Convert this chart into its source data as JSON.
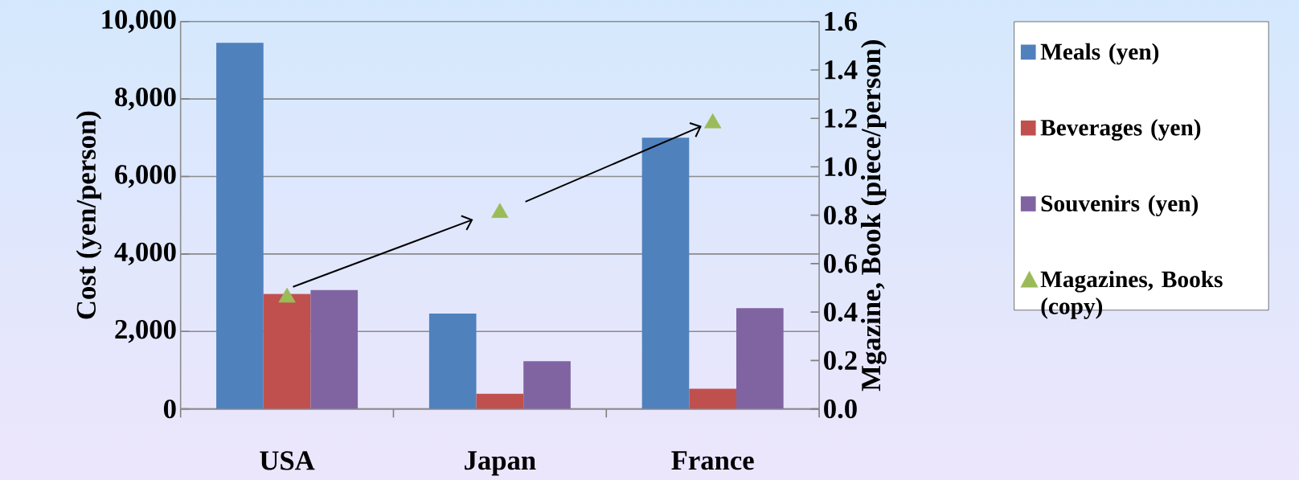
{
  "chart_data": {
    "type": "bar",
    "categories": [
      "USA",
      "Japan",
      "France"
    ],
    "ylabel": "Cost (yen/person)",
    "y2label": "Mgazine, Book (piece/person)",
    "series": [
      {
        "name": "Meals (yen)",
        "color": "#4f81bd",
        "values": [
          9450,
          2460,
          7000
        ]
      },
      {
        "name": "Beverages (yen)",
        "color": "#c0504d",
        "values": [
          2970,
          390,
          520
        ]
      },
      {
        "name": "Souvenirs (yen)",
        "color": "#8064a2",
        "values": [
          3070,
          1230,
          2600
        ]
      },
      {
        "name": "Magazines, Books (copy)",
        "type": "scatter",
        "axis": "y2",
        "marker": "triangle",
        "color": "#9bbb59",
        "values": [
          0.46,
          0.81,
          1.18
        ]
      }
    ],
    "ylim": [
      0,
      10000
    ],
    "yticks": [
      {
        "value": 0,
        "label": "0"
      },
      {
        "value": 2000,
        "label": "2,000"
      },
      {
        "value": 4000,
        "label": "4,000"
      },
      {
        "value": 6000,
        "label": "6,000"
      },
      {
        "value": 8000,
        "label": "8,000"
      },
      {
        "value": 10000,
        "label": "10,000"
      }
    ],
    "y2lim": [
      0,
      1.6
    ],
    "y2ticks": [
      {
        "value": 0,
        "label": "0.0"
      },
      {
        "value": 0.2,
        "label": "0.2"
      },
      {
        "value": 0.4,
        "label": "0.4"
      },
      {
        "value": 0.6,
        "label": "0.6"
      },
      {
        "value": 0.8,
        "label": "0.8"
      },
      {
        "value": 1.0,
        "label": "1.0"
      },
      {
        "value": 1.2,
        "label": "1.2"
      },
      {
        "value": 1.4,
        "label": "1.4"
      },
      {
        "value": 1.6,
        "label": "1.6"
      }
    ],
    "grid": "y",
    "legend": "right"
  }
}
